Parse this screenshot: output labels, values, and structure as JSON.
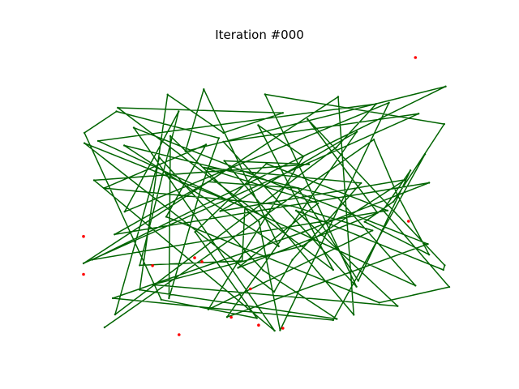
{
  "chart_data": {
    "type": "line",
    "title": "Iteration #000",
    "grid": false,
    "axes_visible": false,
    "route_color": "#006400",
    "city_color": "#ff0000",
    "route": [
      [
        4.6,
        3.9
      ],
      [
        63.5,
        70.8
      ],
      [
        68.6,
        51.3
      ],
      [
        75.6,
        29.8
      ],
      [
        61.5,
        41.5
      ],
      [
        67.8,
        48.7
      ],
      [
        78.9,
        76.3
      ],
      [
        39.7,
        86.9
      ],
      [
        59.7,
        18.4
      ],
      [
        30.6,
        70.0
      ],
      [
        73.3,
        80.0
      ],
      [
        0.0,
        26.7
      ],
      [
        55.7,
        86.0
      ],
      [
        59.1,
        8.4
      ],
      [
        30.8,
        63.2
      ],
      [
        49.3,
        62.0
      ],
      [
        2.3,
        56.3
      ],
      [
        41.8,
        2.7
      ],
      [
        11.0,
        75.0
      ],
      [
        75.3,
        33.6
      ],
      [
        31.4,
        7.6
      ],
      [
        59.8,
        73.6
      ],
      [
        29.9,
        45.3
      ],
      [
        70.4,
        56.5
      ],
      [
        47.9,
        32.9
      ],
      [
        15.1,
        19.1
      ],
      [
        68.7,
        11.5
      ],
      [
        46.5,
        45.5
      ],
      [
        78.7,
        24.4
      ],
      [
        79.0,
        26.0
      ],
      [
        49.0,
        78.1
      ],
      [
        64.3,
        44.7
      ],
      [
        33.8,
        25.1
      ],
      [
        51.3,
        48.1
      ],
      [
        26.3,
        60.8
      ],
      [
        60.7,
        55.3
      ],
      [
        45.7,
        28.0
      ],
      [
        41.7,
        16.6
      ],
      [
        0.2,
        69.5
      ],
      [
        35.3,
        46.7
      ],
      [
        34.7,
        27.6
      ],
      [
        12.3,
        26.0
      ],
      [
        20.8,
        80.8
      ],
      [
        9.0,
        45.1
      ],
      [
        66.8,
        83.9
      ],
      [
        43.0,
        2.9
      ],
      [
        38.4,
        41.5
      ],
      [
        19.0,
        72.0
      ],
      [
        18.7,
        14.3
      ],
      [
        25.7,
        53.5
      ],
      [
        29.6,
        71.3
      ],
      [
        7.2,
        80.8
      ],
      [
        0.2,
        73.2
      ],
      [
        17.0,
        13.8
      ],
      [
        37.9,
        7.2
      ],
      [
        24.4,
        37.9
      ],
      [
        40.0,
        62.2
      ],
      [
        66.5,
        45.5
      ],
      [
        1.9,
        28.0
      ],
      [
        79.2,
        89.7
      ],
      [
        22.3,
        66.6
      ],
      [
        26.3,
        88.7
      ],
      [
        42.7,
        32.8
      ],
      [
        8.9,
        68.7
      ],
      [
        55.6,
        50.1
      ],
      [
        72.6,
        18.8
      ],
      [
        3.2,
        70.3
      ],
      [
        64.0,
        83.5
      ],
      [
        55.3,
        68.0
      ],
      [
        6.9,
        8.5
      ],
      [
        16.6,
        64.4
      ],
      [
        39.3,
        24.2
      ],
      [
        55.4,
        6.9
      ],
      [
        12.3,
        17.3
      ],
      [
        18.4,
        86.8
      ],
      [
        30.6,
        73.2
      ],
      [
        43.6,
        80.3
      ],
      [
        7.5,
        82.1
      ],
      [
        54.6,
        24.4
      ],
      [
        38.2,
        75.9
      ],
      [
        48.1,
        64.8
      ],
      [
        27.3,
        10.3
      ],
      [
        63.2,
        38.4
      ],
      [
        45.5,
        47.2
      ],
      [
        4.5,
        53.5
      ],
      [
        26.8,
        69.0
      ],
      [
        18.1,
        43.3
      ],
      [
        64.7,
        12.7
      ],
      [
        80.0,
        18.3
      ],
      [
        65.5,
        45.6
      ],
      [
        71.5,
        59.8
      ],
      [
        60.1,
        20.5
      ],
      [
        46.9,
        53.5
      ],
      [
        27.3,
        55.8
      ],
      [
        6.8,
        37.0
      ],
      [
        75.6,
        55.4
      ],
      [
        48.0,
        37.8
      ],
      [
        6.4,
        14.3
      ],
      [
        54.6,
        6.5
      ],
      [
        74.7,
        65.6
      ]
    ],
    "unvisited_cities": [
      [
        72.6,
        100.0
      ],
      [
        71.1,
        41.7
      ],
      [
        0.0,
        36.3
      ],
      [
        0.0,
        22.8
      ],
      [
        15.1,
        25.9
      ],
      [
        25.9,
        27.3
      ],
      [
        24.3,
        28.7
      ],
      [
        36.5,
        17.6
      ],
      [
        38.3,
        4.7
      ],
      [
        43.6,
        3.6
      ],
      [
        32.3,
        7.5
      ],
      [
        20.9,
        1.3
      ]
    ]
  }
}
